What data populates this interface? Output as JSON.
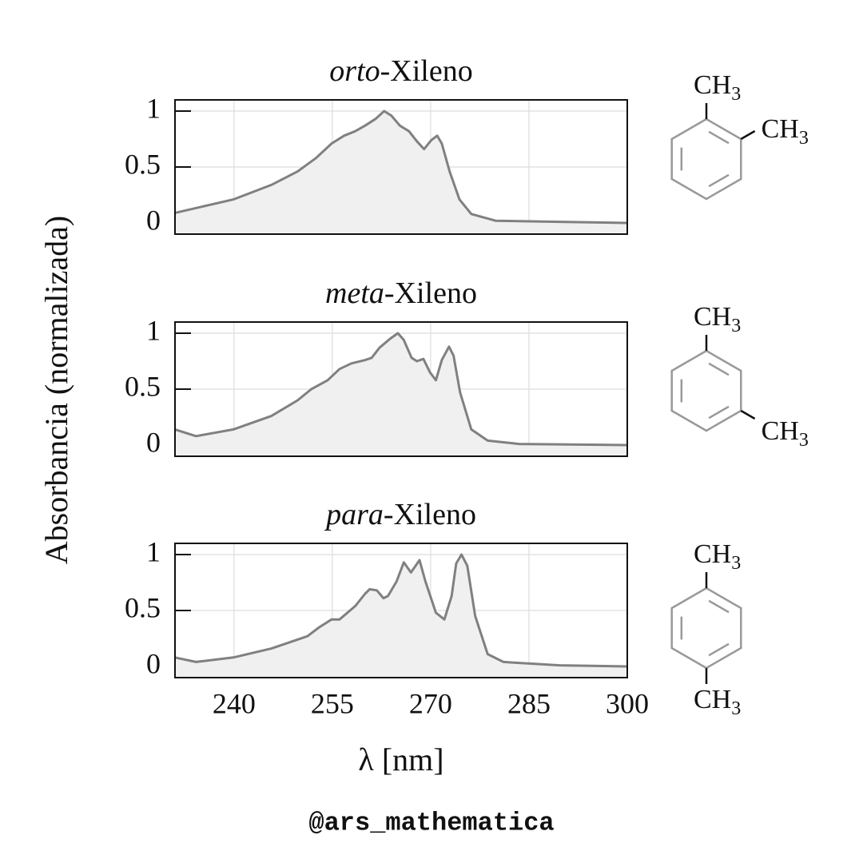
{
  "y_label": "Absorbancia (normalizada)",
  "x_label": "λ [nm]",
  "credit": "@ars_mathematica",
  "chart_data": [
    {
      "type": "line",
      "title_italic": "orto",
      "title_rest": "-Xileno",
      "x": [
        231,
        239.9,
        245.7,
        249.7,
        252.5,
        254.9,
        256.8,
        258.5,
        260.0,
        261.6,
        262.9,
        264.0,
        265.3,
        266.7,
        267.9,
        269.0,
        270.1,
        271.0,
        271.7,
        272.9,
        274.4,
        276.2,
        279.9,
        289.7,
        300
      ],
      "values": [
        0.09,
        0.21,
        0.34,
        0.46,
        0.58,
        0.71,
        0.78,
        0.82,
        0.87,
        0.93,
        1.0,
        0.96,
        0.87,
        0.82,
        0.73,
        0.66,
        0.74,
        0.78,
        0.71,
        0.46,
        0.21,
        0.08,
        0.02,
        0.01,
        0.0
      ],
      "color": "#808080",
      "fill": "#f0f0f0",
      "xlim": [
        231,
        300
      ],
      "ylim": [
        -0.1,
        1.1
      ],
      "xticks": [
        240,
        255,
        270,
        285,
        300
      ],
      "yticks": [
        0,
        0.5,
        1
      ],
      "grid": true,
      "structure": "ortho",
      "structure_labels": [
        {
          "base": "CH",
          "sub": "3"
        },
        {
          "base": "CH",
          "sub": "3"
        }
      ]
    },
    {
      "type": "line",
      "title_italic": "meta",
      "title_rest": "-Xileno",
      "x": [
        231,
        234.2,
        239.9,
        245.7,
        249.7,
        251.8,
        254.3,
        256.1,
        257.9,
        260.0,
        261.0,
        262.2,
        263.8,
        265.0,
        265.9,
        267.1,
        267.9,
        268.9,
        269.9,
        270.8,
        271.7,
        272.8,
        273.5,
        274.5,
        276.2,
        278.7,
        283.5,
        300
      ],
      "values": [
        0.14,
        0.08,
        0.14,
        0.26,
        0.4,
        0.5,
        0.58,
        0.68,
        0.73,
        0.76,
        0.78,
        0.87,
        0.95,
        1.0,
        0.94,
        0.78,
        0.75,
        0.77,
        0.65,
        0.58,
        0.76,
        0.88,
        0.8,
        0.47,
        0.14,
        0.04,
        0.01,
        0.0
      ],
      "color": "#808080",
      "fill": "#f0f0f0",
      "xlim": [
        231,
        300
      ],
      "ylim": [
        -0.1,
        1.1
      ],
      "xticks": [
        240,
        255,
        270,
        285,
        300
      ],
      "yticks": [
        0,
        0.5,
        1
      ],
      "grid": true,
      "structure": "meta",
      "structure_labels": [
        {
          "base": "CH",
          "sub": "3"
        },
        {
          "base": "CH",
          "sub": "3"
        }
      ]
    },
    {
      "type": "line",
      "title_italic": "para",
      "title_rest": "-Xileno",
      "x": [
        231,
        234.2,
        239.9,
        245.7,
        251.2,
        253.0,
        254.9,
        256.1,
        258.5,
        260.0,
        260.7,
        261.8,
        262.8,
        263.5,
        264.8,
        265.9,
        267.0,
        268.3,
        269.2,
        270.8,
        272.1,
        273.2,
        273.9,
        274.7,
        275.6,
        276.8,
        278.7,
        281.1,
        289.7,
        300
      ],
      "values": [
        0.08,
        0.04,
        0.08,
        0.16,
        0.27,
        0.35,
        0.42,
        0.42,
        0.54,
        0.65,
        0.69,
        0.68,
        0.61,
        0.63,
        0.76,
        0.93,
        0.84,
        0.95,
        0.76,
        0.48,
        0.42,
        0.63,
        0.92,
        1.0,
        0.9,
        0.45,
        0.11,
        0.04,
        0.01,
        0.0
      ],
      "color": "#808080",
      "fill": "#f0f0f0",
      "xlim": [
        231,
        300
      ],
      "ylim": [
        -0.1,
        1.1
      ],
      "xticks": [
        240,
        255,
        270,
        285,
        300
      ],
      "yticks": [
        0,
        0.5,
        1
      ],
      "grid": true,
      "structure": "para",
      "structure_labels": [
        {
          "base": "CH",
          "sub": "3"
        },
        {
          "base": "CH",
          "sub": "3"
        }
      ]
    }
  ]
}
